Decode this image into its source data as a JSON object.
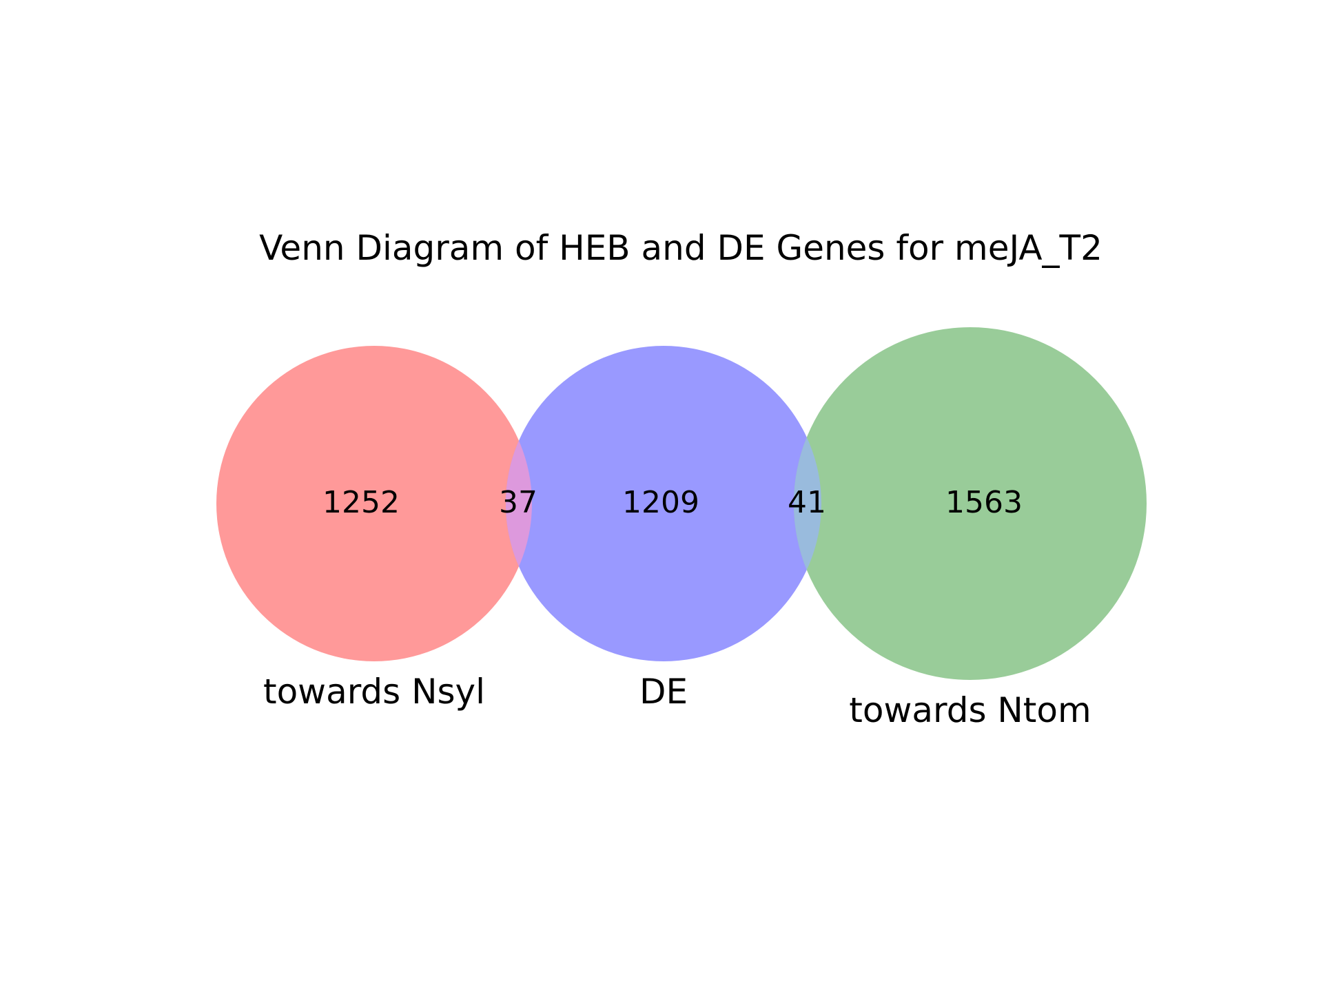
{
  "diagram": {
    "title": "Venn Diagram of HEB and DE Genes for meJA_T2",
    "sets": [
      {
        "id": "nsyl",
        "label": "towards Nsyl",
        "color": "#ff9999"
      },
      {
        "id": "de",
        "label": "DE",
        "color": "#9999ff"
      },
      {
        "id": "ntom",
        "label": "towards Ntom",
        "color": "#99cc99"
      }
    ],
    "regions": {
      "nsyl_only": "1252",
      "nsyl_de": "37",
      "de_only": "1209",
      "de_ntom": "41",
      "ntom_only": "1563"
    },
    "overlap_colors": {
      "nsyl_de": "#dd99dd",
      "de_ntom": "#99bbdd"
    }
  }
}
